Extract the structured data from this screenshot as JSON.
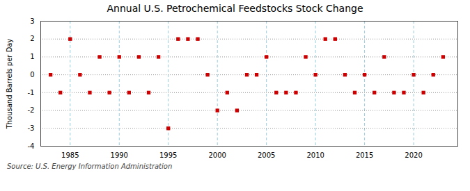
{
  "chart_data": {
    "type": "scatter",
    "title": "Annual U.S. Petrochemical Feedstocks Stock Change",
    "y_label": "Thousand Barrels per Day",
    "annotations": [
      "Source: U.S. Energy Information Administration"
    ],
    "x": [
      1983,
      1984,
      1985,
      1986,
      1987,
      1988,
      1989,
      1990,
      1991,
      1992,
      1993,
      1994,
      1995,
      1996,
      1997,
      1998,
      1999,
      2000,
      2001,
      2002,
      2003,
      2004,
      2005,
      2006,
      2007,
      2008,
      2009,
      2010,
      2011,
      2012,
      2013,
      2014,
      2015,
      2016,
      2017,
      2018,
      2019,
      2020,
      2021,
      2022,
      2023
    ],
    "values": [
      0,
      -1,
      2,
      0,
      -1,
      1,
      -1,
      1,
      -1,
      1,
      -1,
      1,
      -3,
      2,
      2,
      2,
      0,
      -2,
      -1,
      -2,
      0,
      0,
      1,
      -1,
      -1,
      -1,
      1,
      0,
      2,
      2,
      0,
      -1,
      0,
      -1,
      1,
      -1,
      -1,
      0,
      -1,
      0,
      1
    ],
    "color": "#cc0000",
    "marker": "square",
    "xlim": [
      1982.0,
      2024.5
    ],
    "ylim": [
      -4,
      3
    ],
    "xticks": [
      1985,
      1990,
      1995,
      2000,
      2005,
      2010,
      2015,
      2020
    ],
    "yticks": [
      -4,
      -3,
      -2,
      -1,
      0,
      1,
      2,
      3
    ],
    "grid": true
  }
}
